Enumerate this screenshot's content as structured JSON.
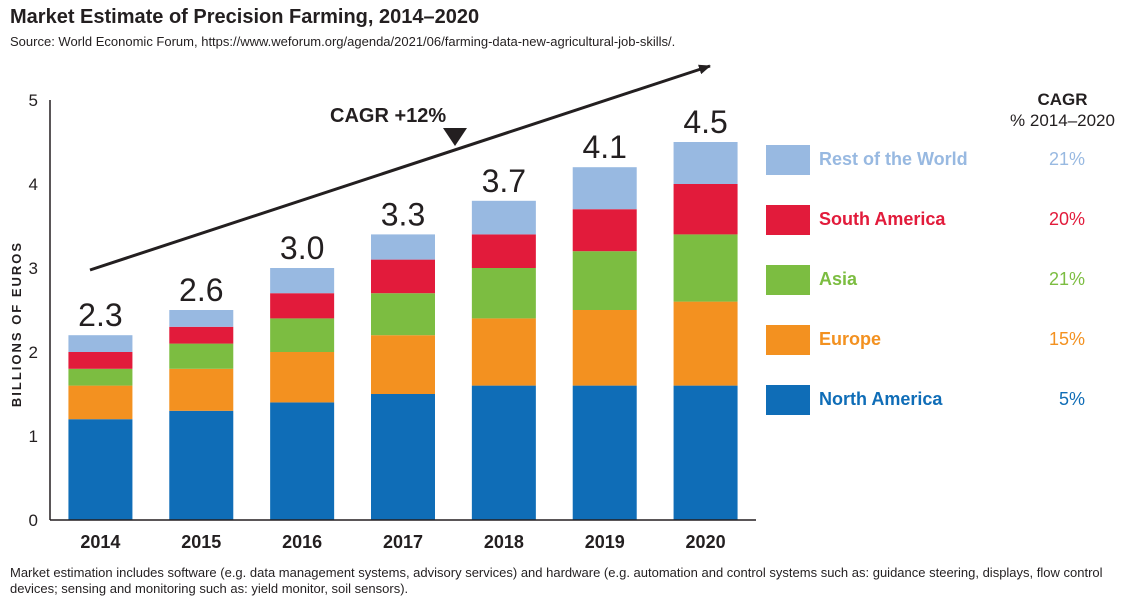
{
  "title": "Market Estimate of Precision Farming, 2014–2020",
  "source": "Source: World Economic Forum, https://www.weforum.org/agenda/2021/06/farming-data-new-agricultural-job-skills/.",
  "footnote": "Market estimation includes software (e.g. data management systems, advisory services) and hardware (e.g. automation and control systems such as: guidance steering, displays, flow control devices; sensing and monitoring such as: yield monitor, soil sensors).",
  "cagr_header": {
    "title": "CAGR",
    "period": "% 2014–2020"
  },
  "trend_label": "CAGR +12%",
  "chart_data": {
    "type": "bar",
    "stacked": true,
    "categories": [
      "2014",
      "2015",
      "2016",
      "2017",
      "2018",
      "2019",
      "2020"
    ],
    "ylabel": "BILLIONS OF EUROS",
    "ylim": [
      0,
      5
    ],
    "yticks": [
      "0",
      "1",
      "2",
      "3",
      "4",
      "5"
    ],
    "grid": false,
    "legend_position": "right",
    "totals": [
      "2.3",
      "2.6",
      "3.0",
      "3.3",
      "3.7",
      "4.1",
      "4.5"
    ],
    "series": [
      {
        "name": "North America",
        "color": "#0f6db7",
        "cagr": "5%",
        "values": [
          1.2,
          1.3,
          1.4,
          1.5,
          1.6,
          1.6,
          1.6
        ]
      },
      {
        "name": "Europe",
        "color": "#f39120",
        "cagr": "15%",
        "values": [
          0.4,
          0.5,
          0.6,
          0.7,
          0.8,
          0.9,
          1.0
        ]
      },
      {
        "name": "Asia",
        "color": "#7cbd41",
        "cagr": "21%",
        "values": [
          0.2,
          0.3,
          0.4,
          0.5,
          0.6,
          0.7,
          0.8
        ]
      },
      {
        "name": "South America",
        "color": "#e21b3b",
        "cagr": "20%",
        "values": [
          0.2,
          0.2,
          0.3,
          0.4,
          0.4,
          0.5,
          0.6
        ]
      },
      {
        "name": "Rest of the World",
        "color": "#98b9e1",
        "cagr": "21%",
        "values": [
          0.2,
          0.2,
          0.3,
          0.3,
          0.4,
          0.5,
          0.5
        ]
      }
    ]
  }
}
